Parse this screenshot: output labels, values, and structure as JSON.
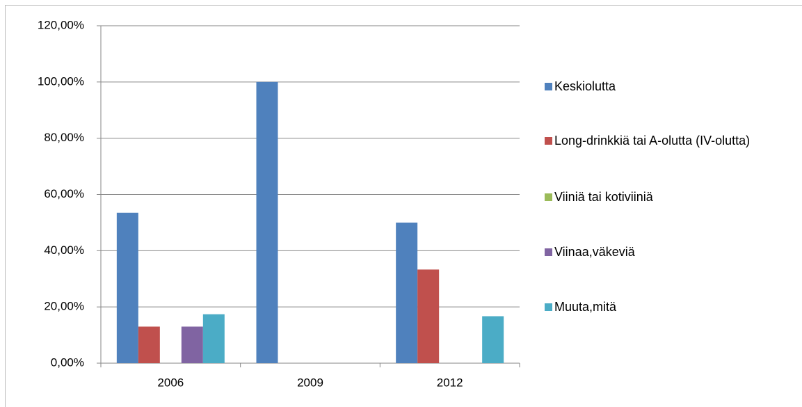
{
  "chart_data": {
    "type": "bar",
    "categories": [
      "2006",
      "2009",
      "2012"
    ],
    "series": [
      {
        "name": "Keskiolutta",
        "color": "#4f81bd",
        "values": [
          53.5,
          100,
          50
        ]
      },
      {
        "name": "Long-drinkkiä tai A-olutta (IV-olutta)",
        "color": "#c0504d",
        "values": [
          13,
          0,
          33.3
        ]
      },
      {
        "name": "Viiniä tai kotiviiniä",
        "color": "#9bbb59",
        "values": [
          0,
          0,
          0
        ]
      },
      {
        "name": "Viinaa,väkeviä",
        "color": "#8064a2",
        "values": [
          13,
          0,
          0
        ]
      },
      {
        "name": "Muuta,mitä",
        "color": "#4bacc6",
        "values": [
          17.4,
          0,
          16.7
        ]
      }
    ],
    "ylim": [
      0,
      120
    ],
    "yticks": [
      {
        "value": 0,
        "label": "0,00%"
      },
      {
        "value": 20,
        "label": "20,00%"
      },
      {
        "value": 40,
        "label": "40,00%"
      },
      {
        "value": 60,
        "label": "60,00%"
      },
      {
        "value": 80,
        "label": "80,00%"
      },
      {
        "value": 100,
        "label": "100,00%"
      },
      {
        "value": 120,
        "label": "120,00%"
      }
    ],
    "grid": true,
    "legend": "right"
  }
}
